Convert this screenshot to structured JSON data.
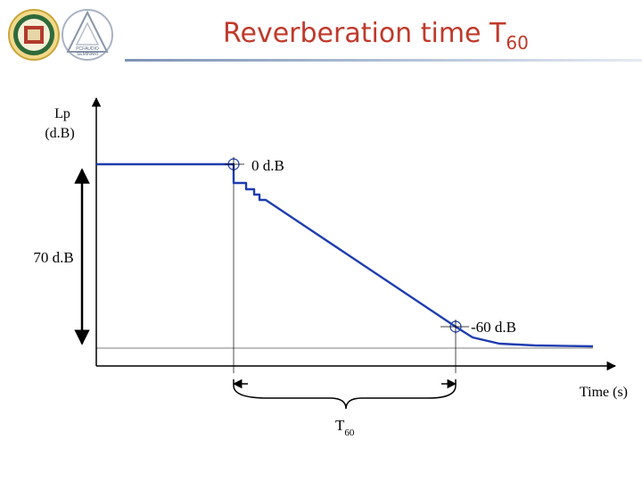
{
  "slide": {
    "title_main": "Reverberation time T",
    "title_sub": "60"
  },
  "logos": {
    "left": {
      "name": "university-seal"
    },
    "right": {
      "name": "acoustics-lab-logo",
      "line1": "PCFAUDIO",
      "line2": "SEMINARI"
    }
  },
  "diagram": {
    "y_axis_label_line1": "Lp",
    "y_axis_label_line2": "(d.B)",
    "x_axis_label": "Time (s)",
    "level_0_label": "0 d.B",
    "level_minus60_label": "-60 d.B",
    "range_label": "70 d.B",
    "t60_label_main": "T",
    "t60_label_sub": "60"
  },
  "colors": {
    "title": "#c0392b",
    "decay_curve": "#1f3db0",
    "axes": "#000000",
    "accent_line": "#8a9bb5"
  }
}
